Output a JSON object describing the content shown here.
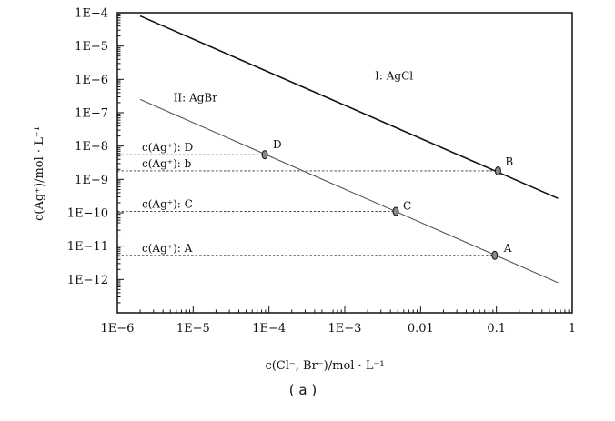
{
  "chart_data": {
    "type": "line",
    "x_scale": "log",
    "y_scale": "log",
    "xlim": [
      1e-06,
      1
    ],
    "ylim": [
      1e-13,
      0.0001
    ],
    "x_tick_labels": [
      "1E−6",
      "1E−5",
      "1E−4",
      "1E−3",
      "0.01",
      "0.1",
      "1"
    ],
    "x_tick_values": [
      1e-06,
      1e-05,
      0.0001,
      0.001,
      0.01,
      0.1,
      1
    ],
    "y_tick_labels": [
      "1E−4",
      "1E−5",
      "1E−6",
      "1E−7",
      "1E−8",
      "1E−9",
      "1E−10",
      "1E−11",
      "1E−12"
    ],
    "y_tick_values": [
      0.0001,
      1e-05,
      1e-06,
      1e-07,
      1e-08,
      1e-09,
      1e-10,
      1e-11,
      1e-12
    ],
    "xlabel": "c(Cl⁻, Br⁻)/mol · L⁻¹",
    "ylabel": "c(Ag⁺)/mol · L⁻¹",
    "caption": "( a )",
    "grid": false,
    "series": [
      {
        "name": "I: AgCl",
        "color": "#111111",
        "x": [
          2e-06,
          0.65
        ],
        "y": [
          8e-05,
          2.7e-10
        ]
      },
      {
        "name": "II: AgBr",
        "color": "#555555",
        "x": [
          2e-06,
          0.65
        ],
        "y": [
          2.5e-07,
          8e-13
        ]
      }
    ],
    "points": [
      {
        "label": "D",
        "x": 8.8e-05,
        "y": 5.5e-09
      },
      {
        "label": "B",
        "x": 0.105,
        "y": 1.8e-09
      },
      {
        "label": "C",
        "x": 0.0047,
        "y": 1.1e-10
      },
      {
        "label": "A",
        "x": 0.095,
        "y": 5.3e-12
      }
    ],
    "reference_lines": [
      {
        "label": "c(Ag⁺): D",
        "y": 5.5e-09,
        "x_end": 8.8e-05
      },
      {
        "label": "c(Ag⁺): b",
        "y": 1.8e-09,
        "x_end": 0.105
      },
      {
        "label": "c(Ag⁺): C",
        "y": 1.1e-10,
        "x_end": 0.0047
      },
      {
        "label": "c(Ag⁺): A",
        "y": 5.3e-12,
        "x_end": 0.095
      }
    ]
  }
}
